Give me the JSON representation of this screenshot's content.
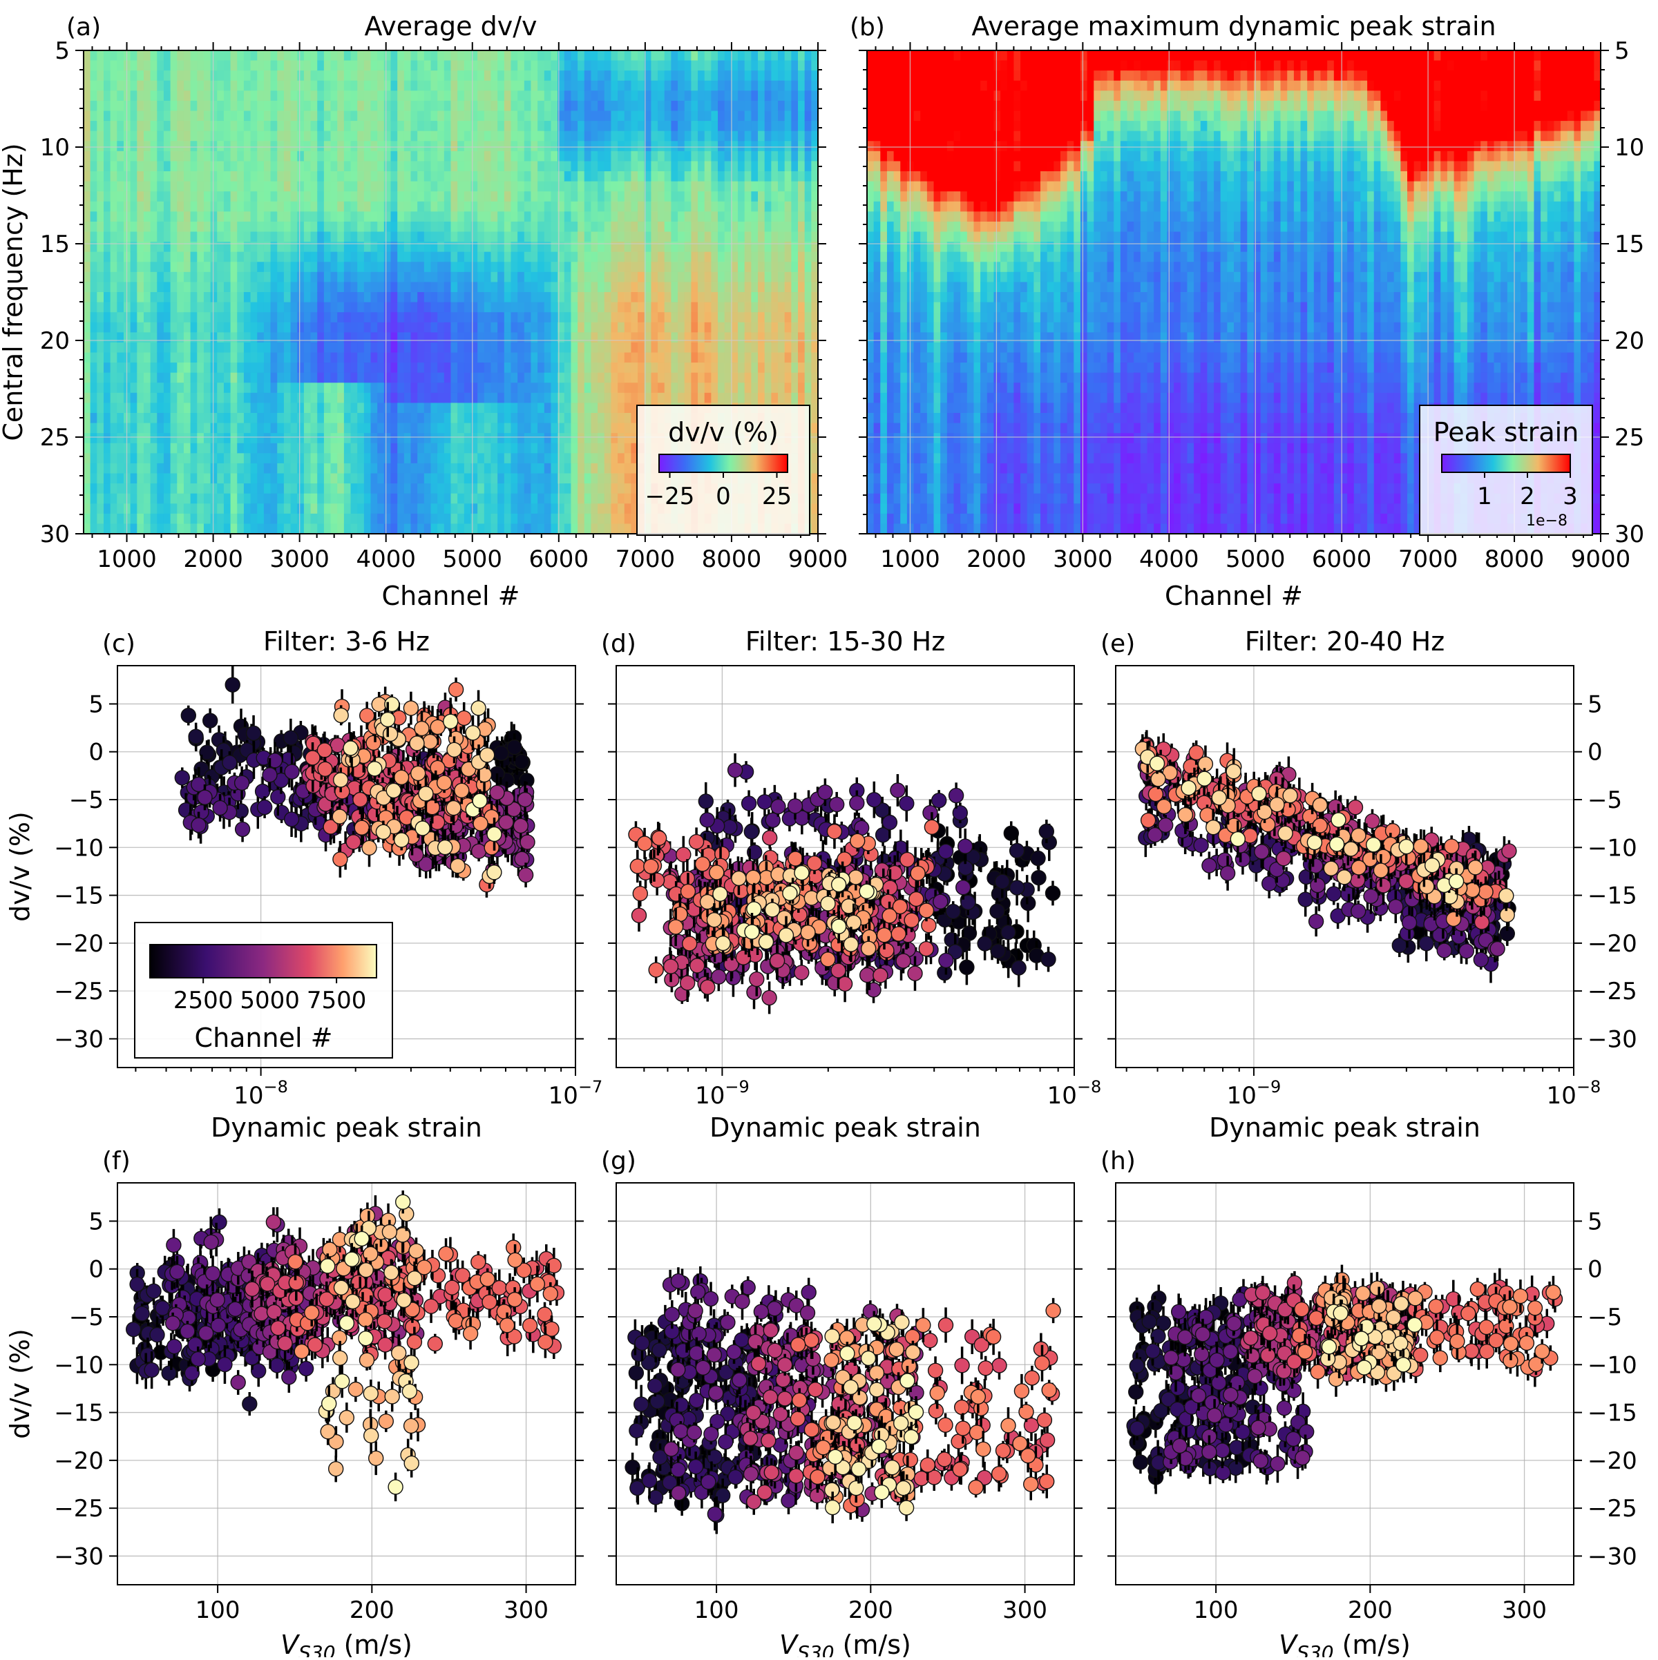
{
  "chart_data": [
    {
      "panel": "(a)",
      "type": "heatmap",
      "title": "Average dv/v",
      "xlabel": "Channel #",
      "ylabel": "Central frequency (Hz)",
      "xlim": [
        500,
        9000
      ],
      "ylim": [
        30,
        5
      ],
      "xticks": [
        "1000",
        "2000",
        "3000",
        "4000",
        "5000",
        "6000",
        "7000",
        "8000",
        "9000"
      ],
      "yticks": [
        "5",
        "10",
        "15",
        "20",
        "25",
        "30"
      ],
      "colorbar": {
        "label": "dv/v (%)",
        "colormap": "rainbow",
        "range": [
          -30,
          30
        ],
        "ticks": [
          "−25",
          "0",
          "25"
        ]
      },
      "grid": true
    },
    {
      "panel": "(b)",
      "type": "heatmap",
      "title": "Average maximum dynamic peak strain",
      "xlabel": "Channel #",
      "ylabel": "",
      "xlim": [
        500,
        9000
      ],
      "ylim": [
        30,
        5
      ],
      "xticks": [
        "1000",
        "2000",
        "3000",
        "4000",
        "5000",
        "6000",
        "7000",
        "8000",
        "9000"
      ],
      "yticks": [
        "5",
        "10",
        "15",
        "20",
        "25",
        "30"
      ],
      "colorbar": {
        "label": "Peak strain",
        "colormap": "rainbow",
        "range": [
          0,
          3e-08
        ],
        "ticks": [
          "1",
          "2",
          "3"
        ],
        "offset": "1e−8"
      },
      "grid": true
    },
    {
      "panel": "(c)",
      "type": "scatter",
      "title": "Filter: 3-6 Hz",
      "xlabel": "Dynamic peak strain",
      "ylabel": "dv/v (%)",
      "xscale": "log",
      "xlim": [
        3.5e-09,
        1e-07
      ],
      "ylim": [
        -33,
        9
      ],
      "xticks": [
        {
          "m": "10",
          "e": "−8",
          "v": 1e-08
        },
        {
          "m": "10",
          "e": "−7",
          "v": 1e-07
        }
      ],
      "yticks": [
        "5",
        "0",
        "−5",
        "−10",
        "−15",
        "−20",
        "−25",
        "−30"
      ],
      "color_by": "Channel #",
      "colorbar": {
        "label": "Channel #",
        "colormap": "magma",
        "range": [
          500,
          9000
        ],
        "ticks": [
          "2500",
          "5000",
          "7500"
        ]
      }
    },
    {
      "panel": "(d)",
      "type": "scatter",
      "title": "Filter: 15-30 Hz",
      "xlabel": "Dynamic peak strain",
      "ylabel": "",
      "xscale": "log",
      "xlim": [
        5e-10,
        1e-08
      ],
      "ylim": [
        -33,
        9
      ],
      "xticks": [
        {
          "m": "10",
          "e": "−9",
          "v": 1e-09
        },
        {
          "m": "10",
          "e": "−8",
          "v": 1e-08
        }
      ],
      "yticks": [],
      "color_by": "Channel #"
    },
    {
      "panel": "(e)",
      "type": "scatter",
      "title": "Filter: 20-40 Hz",
      "xlabel": "Dynamic peak strain",
      "ylabel": "",
      "xscale": "log",
      "xlim": [
        3.7e-10,
        1e-08
      ],
      "ylim": [
        -33,
        9
      ],
      "xticks": [
        {
          "m": "10",
          "e": "−9",
          "v": 1e-09
        },
        {
          "m": "10",
          "e": "−8",
          "v": 1e-08
        }
      ],
      "yticks": [
        "5",
        "0",
        "−5",
        "−10",
        "−15",
        "−20",
        "−25",
        "−30"
      ],
      "color_by": "Channel #"
    },
    {
      "panel": "(f)",
      "type": "scatter",
      "title": "",
      "xlabel": "V",
      "xlabel_sub": "S30",
      "xlabel_unit": " (m/s)",
      "ylabel": "dv/v (%)",
      "xlim": [
        35,
        332
      ],
      "ylim": [
        -33,
        9
      ],
      "xticks": [
        "100",
        "200",
        "300"
      ],
      "yticks": [
        "5",
        "0",
        "−5",
        "−10",
        "−15",
        "−20",
        "−25",
        "−30"
      ],
      "color_by": "Channel #"
    },
    {
      "panel": "(g)",
      "type": "scatter",
      "title": "",
      "xlabel": "V",
      "xlabel_sub": "S30",
      "xlabel_unit": " (m/s)",
      "ylabel": "",
      "xlim": [
        35,
        332
      ],
      "ylim": [
        -33,
        9
      ],
      "xticks": [
        "100",
        "200",
        "300"
      ],
      "yticks": [],
      "color_by": "Channel #"
    },
    {
      "panel": "(h)",
      "type": "scatter",
      "title": "",
      "xlabel": "V",
      "xlabel_sub": "S30",
      "xlabel_unit": " (m/s)",
      "ylabel": "",
      "xlim": [
        35,
        332
      ],
      "ylim": [
        -33,
        9
      ],
      "xticks": [
        "100",
        "200",
        "300"
      ],
      "yticks": [
        "5",
        "0",
        "−5",
        "−10",
        "−15",
        "−20",
        "−25",
        "−30"
      ],
      "color_by": "Channel #"
    }
  ]
}
